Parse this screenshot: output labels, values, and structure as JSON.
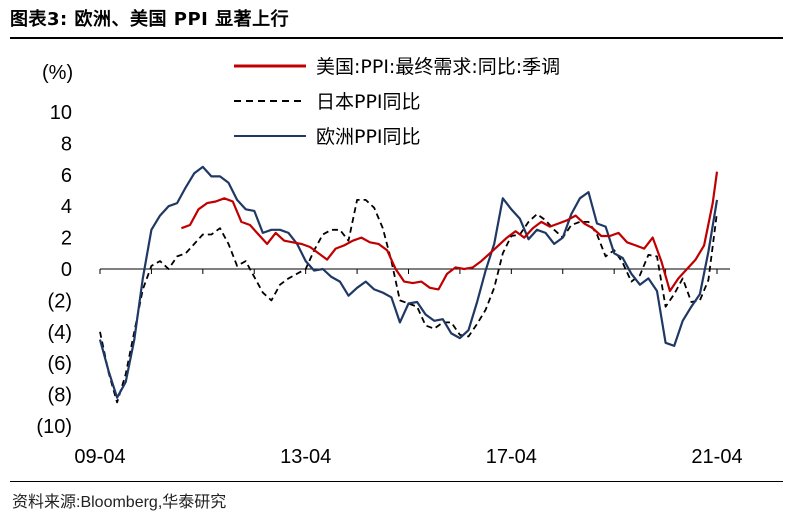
{
  "header": {
    "title": "图表3:  欧洲、美国 PPI 显著上行"
  },
  "footer": {
    "source": "资料来源:Bloomberg,华泰研究"
  },
  "chart_data": {
    "type": "line",
    "ylabel": "(%)",
    "ylim": [
      -10,
      10
    ],
    "yticks": [
      10,
      8,
      6,
      4,
      2,
      0,
      -2,
      -4,
      -6,
      -8,
      -10
    ],
    "ytick_labels": [
      "10",
      "8",
      "6",
      "4",
      "2",
      "0",
      "(2)",
      "(4)",
      "(6)",
      "(8)",
      "(10)"
    ],
    "xtick_labels": [
      "09-04",
      "13-04",
      "17-04",
      "21-04"
    ],
    "xtick_positions": [
      "2009-04",
      "2013-04",
      "2017-04",
      "2021-04"
    ],
    "legend_position": "top-right",
    "colors": {
      "us": "#c00000",
      "japan": "#000000",
      "europe": "#1f3864"
    },
    "series": [
      {
        "name": "美国:PPI:最终需求:同比:季调",
        "color": "#c00000",
        "style": "solid",
        "x": [
          "2010-11",
          "2011-01",
          "2011-03",
          "2011-05",
          "2011-07",
          "2011-09",
          "2011-11",
          "2012-01",
          "2012-03",
          "2012-05",
          "2012-07",
          "2012-09",
          "2012-11",
          "2013-01",
          "2013-03",
          "2013-05",
          "2013-07",
          "2013-09",
          "2013-11",
          "2014-01",
          "2014-03",
          "2014-05",
          "2014-07",
          "2014-09",
          "2014-11",
          "2015-01",
          "2015-03",
          "2015-05",
          "2015-07",
          "2015-09",
          "2015-11",
          "2016-01",
          "2016-03",
          "2016-05",
          "2016-07",
          "2016-09",
          "2016-11",
          "2017-01",
          "2017-03",
          "2017-05",
          "2017-07",
          "2017-09",
          "2017-11",
          "2018-01",
          "2018-03",
          "2018-05",
          "2018-07",
          "2018-09",
          "2018-11",
          "2019-01",
          "2019-03",
          "2019-05",
          "2019-07",
          "2019-09",
          "2019-11",
          "2020-01",
          "2020-03",
          "2020-05",
          "2020-07",
          "2020-09",
          "2020-11",
          "2021-01",
          "2021-03",
          "2021-04"
        ],
        "y": [
          2.6,
          2.8,
          3.8,
          4.2,
          4.3,
          4.5,
          4.3,
          3.0,
          2.8,
          2.2,
          1.6,
          2.3,
          1.8,
          1.7,
          1.6,
          1.4,
          1.0,
          0.6,
          1.3,
          1.5,
          1.8,
          2.0,
          1.7,
          1.6,
          1.2,
          0.0,
          -0.8,
          -0.9,
          -0.8,
          -1.2,
          -1.3,
          -0.3,
          0.1,
          0.0,
          0.1,
          0.5,
          1.0,
          1.5,
          2.0,
          2.4,
          2.0,
          2.6,
          3.0,
          2.7,
          2.9,
          3.1,
          3.4,
          2.9,
          2.6,
          2.1,
          2.1,
          2.3,
          1.7,
          1.5,
          1.3,
          2.0,
          0.5,
          -1.4,
          -0.6,
          0.0,
          0.6,
          1.5,
          4.2,
          6.2
        ]
      },
      {
        "name": "日本PPI同比",
        "color": "#000000",
        "style": "dashed",
        "x": [
          "2009-04",
          "2009-06",
          "2009-08",
          "2009-10",
          "2009-12",
          "2010-02",
          "2010-04",
          "2010-06",
          "2010-08",
          "2010-10",
          "2010-12",
          "2011-02",
          "2011-04",
          "2011-06",
          "2011-08",
          "2011-10",
          "2011-12",
          "2012-02",
          "2012-04",
          "2012-06",
          "2012-08",
          "2012-10",
          "2012-12",
          "2013-02",
          "2013-04",
          "2013-06",
          "2013-08",
          "2013-10",
          "2013-12",
          "2014-02",
          "2014-04",
          "2014-06",
          "2014-08",
          "2014-10",
          "2014-12",
          "2015-02",
          "2015-04",
          "2015-06",
          "2015-08",
          "2015-10",
          "2015-12",
          "2016-02",
          "2016-04",
          "2016-06",
          "2016-08",
          "2016-10",
          "2016-12",
          "2017-02",
          "2017-04",
          "2017-06",
          "2017-08",
          "2017-10",
          "2017-12",
          "2018-02",
          "2018-04",
          "2018-06",
          "2018-08",
          "2018-10",
          "2018-12",
          "2019-02",
          "2019-04",
          "2019-06",
          "2019-08",
          "2019-10",
          "2019-12",
          "2020-02",
          "2020-04",
          "2020-06",
          "2020-08",
          "2020-10",
          "2020-12",
          "2021-02",
          "2021-04"
        ],
        "y": [
          -4.0,
          -6.6,
          -8.5,
          -6.7,
          -4.0,
          -1.3,
          0.2,
          0.5,
          0.0,
          0.8,
          1.0,
          1.6,
          2.2,
          2.2,
          2.6,
          1.6,
          0.2,
          0.5,
          -0.5,
          -1.5,
          -2.0,
          -1.0,
          -0.6,
          -0.3,
          0.0,
          1.2,
          2.2,
          2.5,
          2.5,
          1.8,
          4.4,
          4.4,
          3.9,
          2.6,
          0.5,
          -2.0,
          -2.2,
          -2.4,
          -3.6,
          -3.8,
          -3.4,
          -3.4,
          -4.2,
          -4.3,
          -3.5,
          -2.6,
          -1.2,
          1.0,
          2.1,
          2.2,
          3.0,
          3.5,
          3.1,
          2.5,
          2.0,
          2.8,
          3.0,
          3.0,
          2.2,
          0.8,
          1.2,
          0.4,
          -0.8,
          -0.4,
          0.9,
          0.8,
          -2.4,
          -1.6,
          -0.6,
          -2.1,
          -2.0,
          -0.7,
          3.6
        ]
      },
      {
        "name": "欧洲PPI同比",
        "color": "#1f3864",
        "style": "solid",
        "x": [
          "2009-04",
          "2009-06",
          "2009-08",
          "2009-10",
          "2009-12",
          "2010-02",
          "2010-04",
          "2010-06",
          "2010-08",
          "2010-10",
          "2010-12",
          "2011-02",
          "2011-04",
          "2011-06",
          "2011-08",
          "2011-10",
          "2011-12",
          "2012-02",
          "2012-04",
          "2012-06",
          "2012-08",
          "2012-10",
          "2012-12",
          "2013-02",
          "2013-04",
          "2013-06",
          "2013-08",
          "2013-10",
          "2013-12",
          "2014-02",
          "2014-04",
          "2014-06",
          "2014-08",
          "2014-10",
          "2014-12",
          "2015-02",
          "2015-04",
          "2015-06",
          "2015-08",
          "2015-10",
          "2015-12",
          "2016-02",
          "2016-04",
          "2016-06",
          "2016-08",
          "2016-10",
          "2016-12",
          "2017-02",
          "2017-04",
          "2017-06",
          "2017-08",
          "2017-10",
          "2017-12",
          "2018-02",
          "2018-04",
          "2018-06",
          "2018-08",
          "2018-10",
          "2018-12",
          "2019-02",
          "2019-04",
          "2019-06",
          "2019-08",
          "2019-10",
          "2019-12",
          "2020-02",
          "2020-04",
          "2020-06",
          "2020-08",
          "2020-10",
          "2020-12",
          "2021-02",
          "2021-04"
        ],
        "y": [
          -4.5,
          -6.5,
          -8.2,
          -7.2,
          -4.5,
          -0.6,
          2.5,
          3.4,
          4.0,
          4.2,
          5.2,
          6.1,
          6.5,
          5.9,
          5.9,
          5.5,
          4.4,
          3.8,
          3.7,
          2.3,
          2.5,
          2.5,
          2.3,
          1.6,
          0.5,
          -0.1,
          0.0,
          -0.5,
          -0.8,
          -1.7,
          -1.2,
          -0.8,
          -1.3,
          -1.5,
          -1.8,
          -3.4,
          -2.2,
          -2.1,
          -2.9,
          -3.3,
          -3.2,
          -4.1,
          -4.4,
          -3.9,
          -2.1,
          -0.1,
          1.6,
          4.5,
          3.8,
          3.2,
          1.9,
          2.5,
          2.3,
          1.6,
          2.0,
          3.5,
          4.5,
          4.9,
          2.9,
          2.7,
          1.0,
          0.7,
          -0.3,
          -1.0,
          -0.6,
          -1.4,
          -4.7,
          -4.9,
          -3.3,
          -2.4,
          -1.6,
          1.1,
          4.4
        ]
      }
    ]
  }
}
